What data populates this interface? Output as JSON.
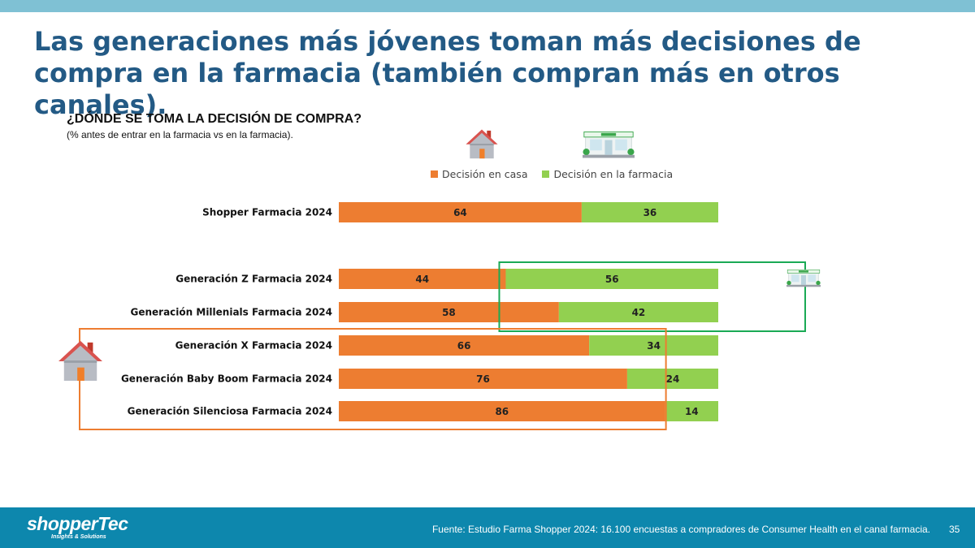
{
  "slide": {
    "title": "Las generaciones más jóvenes toman más decisiones de compra en la farmacia (también compran más en otros canales).",
    "page_number": "35"
  },
  "chart_heading": {
    "title": "¿DÓNDE SE TOMA LA DECISIÓN DE COMPRA?",
    "subtitle": "(% antes de entrar en la farmacia vs en la farmacia)."
  },
  "colors": {
    "casa": "#ed7d31",
    "farmacia": "#92d050",
    "title": "#235a85",
    "footer": "#0d87ad",
    "topbar": "#7fc1d4",
    "highlight_casa": "#ed7d31",
    "highlight_farmacia": "#1aaa55"
  },
  "icons": {
    "house": "house-icon",
    "pharmacy": "pharmacy-storefront-icon"
  },
  "chart_data": {
    "type": "bar",
    "orientation": "horizontal",
    "stacked": true,
    "categories": [
      "Shopper Farmacia 2024",
      "Generación Z Farmacia 2024",
      "Generación Millenials Farmacia 2024",
      "Generación X Farmacia 2024",
      "Generación Baby Boom Farmacia 2024",
      "Generación Silenciosa Farmacia 2024"
    ],
    "series": [
      {
        "name": "Decisión en casa",
        "values": [
          64,
          44,
          58,
          66,
          76,
          86
        ]
      },
      {
        "name": "Decisión en la farmacia",
        "values": [
          36,
          56,
          42,
          34,
          24,
          14
        ]
      }
    ],
    "xlim": [
      0,
      100
    ],
    "legend_position": "top",
    "grid": false,
    "highlight_groups": [
      {
        "series": "Decisión en la farmacia",
        "categories": [
          "Generación Z Farmacia 2024",
          "Generación Millenials Farmacia 2024"
        ]
      },
      {
        "series": "Decisión en casa",
        "categories": [
          "Generación X Farmacia 2024",
          "Generación Baby Boom Farmacia 2024",
          "Generación Silenciosa Farmacia 2024"
        ]
      }
    ]
  },
  "footer": {
    "logo": "shopperTec",
    "logo_tagline": "Insights & Solutions",
    "source": "Fuente: Estudio Farma Shopper 2024: 16.100 encuestas a compradores de Consumer Health en el canal farmacia."
  }
}
